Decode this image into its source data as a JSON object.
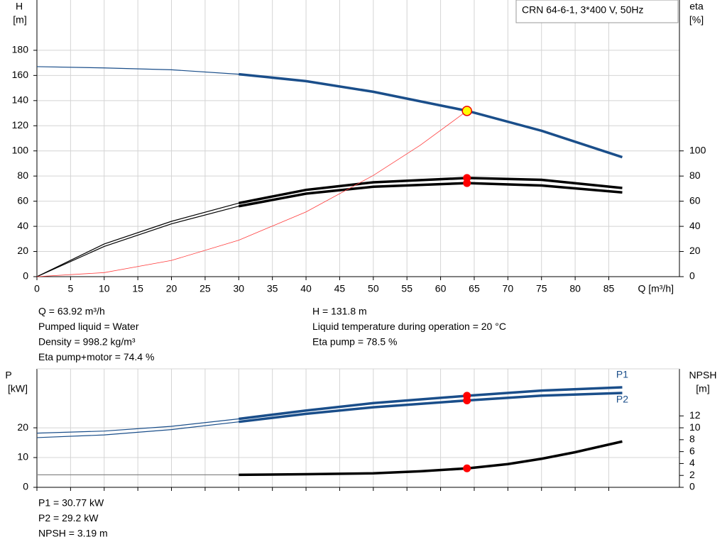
{
  "chart_data": [
    {
      "type": "line",
      "ylabel": "H",
      "yunit": "[m]",
      "y2label": "eta",
      "y2unit": "[%]",
      "xlabel": "Q [m³/h]",
      "legend_box": "CRN 64-6-1, 3*400 V, 50Hz",
      "xlim": [
        0,
        95.5
      ],
      "xticks": [
        0,
        5,
        10,
        15,
        20,
        25,
        30,
        35,
        40,
        45,
        50,
        55,
        60,
        65,
        70,
        75,
        80,
        85
      ],
      "ylim": [
        0,
        220
      ],
      "yticks": [
        0,
        20,
        40,
        60,
        80,
        100,
        120,
        140,
        160,
        180
      ],
      "y2lim": [
        0,
        220
      ],
      "y2ticks": [
        0,
        20,
        40,
        60,
        80,
        100
      ],
      "grid": true,
      "series": [
        {
          "color": "#1a4e8a",
          "thick_from": 30,
          "x": [
            0,
            10,
            20,
            30,
            40,
            50,
            64,
            75,
            87
          ],
          "values": [
            167,
            166,
            164.5,
            161,
            155.5,
            147,
            131.8,
            116,
            95
          ]
        },
        {
          "color": "#000000",
          "axis": "y2",
          "thick_from": 30,
          "x": [
            0,
            10,
            20,
            30,
            40,
            50,
            64,
            75,
            87
          ],
          "values": [
            0,
            26,
            44,
            58.5,
            69,
            75,
            78.5,
            77,
            70.5
          ]
        },
        {
          "color": "#000000",
          "axis": "y2",
          "thick_from": 30,
          "x": [
            0,
            10,
            20,
            30,
            40,
            50,
            64,
            75,
            87
          ],
          "values": [
            0,
            24,
            42,
            56,
            66,
            71.5,
            74.4,
            72.5,
            67
          ]
        },
        {
          "color": "#ff3b3b",
          "thin": true,
          "x": [
            0,
            10,
            20,
            30,
            40,
            50,
            57,
            63.92
          ],
          "values": [
            0,
            3.2,
            12.9,
            29,
            51.5,
            80.5,
            104.6,
            131.8
          ]
        }
      ],
      "duty_points": [
        {
          "x": 63.92,
          "y": 131.8,
          "color": "#ffff00"
        },
        {
          "x": 63.92,
          "y": 78.5,
          "axis": "y2",
          "color": "#ff0000"
        },
        {
          "x": 63.92,
          "y": 74.4,
          "axis": "y2",
          "color": "#ff0000"
        }
      ]
    },
    {
      "type": "line",
      "ylabel": "P",
      "yunit": "[kW]",
      "y2label": "NPSH",
      "y2unit": "[m]",
      "xlim": [
        0,
        95.5
      ],
      "xticks": [
        0,
        5,
        10,
        15,
        20,
        25,
        30,
        35,
        40,
        45,
        50,
        55,
        60,
        65,
        70,
        75,
        80,
        85
      ],
      "ylim": [
        0,
        39.8
      ],
      "yticks": [
        0,
        10,
        20
      ],
      "y2lim": [
        0,
        19.9
      ],
      "y2ticks": [
        0,
        2,
        4,
        6,
        8,
        10,
        12
      ],
      "grid": true,
      "series": [
        {
          "name": "P1",
          "color": "#1a4e8a",
          "thick_from": 30,
          "x": [
            0,
            10,
            20,
            30,
            40,
            50,
            64,
            75,
            87
          ],
          "values": [
            18.2,
            18.9,
            20.5,
            23,
            25.8,
            28.3,
            30.77,
            32.5,
            33.6
          ]
        },
        {
          "name": "P2",
          "color": "#1a4e8a",
          "thick_from": 30,
          "x": [
            0,
            10,
            20,
            30,
            40,
            50,
            64,
            75,
            87
          ],
          "values": [
            16.7,
            17.6,
            19.4,
            22,
            24.7,
            26.9,
            29.2,
            30.8,
            31.7
          ]
        },
        {
          "color": "#000000",
          "thick_from": 30,
          "axis": "y2",
          "x": [
            0,
            30,
            40,
            50,
            57,
            64,
            70,
            75,
            80,
            87
          ],
          "values": [
            2.1,
            2.1,
            2.2,
            2.35,
            2.7,
            3.19,
            3.9,
            4.8,
            5.9,
            7.7
          ]
        }
      ],
      "duty_points": [
        {
          "x": 63.92,
          "y": 30.77,
          "color": "#ff0000"
        },
        {
          "x": 63.92,
          "y": 29.2,
          "color": "#ff0000"
        },
        {
          "x": 63.92,
          "y": 3.19,
          "axis": "y2",
          "color": "#ff0000"
        }
      ]
    }
  ],
  "info_top": [
    [
      "Q = 63.92 m³/h",
      "Pumped liquid = Water",
      "Density = 998.2 kg/m³",
      "Eta pump+motor = 74.4 %"
    ],
    [
      "H = 131.8 m",
      "Liquid temperature during operation = 20 °C",
      "Eta pump = 78.5 %"
    ]
  ],
  "info_bottom": [
    "P1 = 30.77 kW",
    "P2 = 29.2 kW",
    "NPSH = 3.19 m"
  ]
}
